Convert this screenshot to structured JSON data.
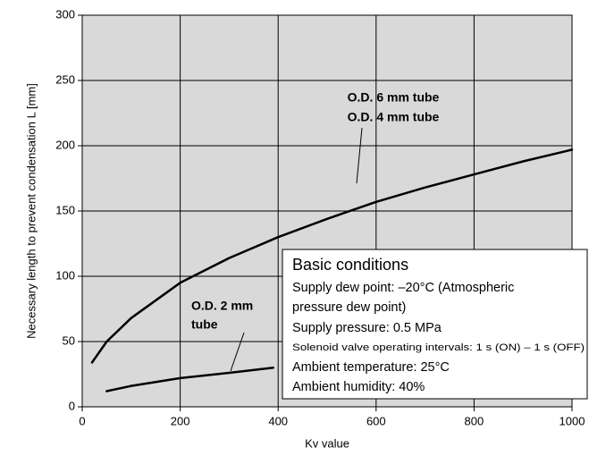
{
  "chart_data": {
    "type": "line",
    "xlabel": "Kv value",
    "ylabel": "Necessary length to prevent condensation L [mm]",
    "xlim": [
      0,
      1000
    ],
    "xticks": [
      0,
      200,
      400,
      600,
      800,
      1000
    ],
    "ylim": [
      0,
      300
    ],
    "yticks": [
      0,
      50,
      100,
      150,
      200,
      250,
      300
    ],
    "grid": true,
    "series": [
      {
        "color": "#000000",
        "x": [
          20,
          50,
          100,
          200,
          300,
          400,
          500,
          600,
          700,
          800,
          900,
          1000
        ],
        "values": [
          34,
          50,
          68,
          95,
          114,
          130,
          144,
          157,
          168,
          178,
          188,
          197
        ]
      },
      {
        "color": "#000000",
        "x": [
          50,
          100,
          200,
          300,
          390
        ],
        "values": [
          12,
          16,
          22,
          26,
          30
        ]
      }
    ],
    "annotations": {
      "od6": "O.D. 6 mm tube",
      "od4": "O.D. 4 mm tube",
      "od2_line1": "O.D. 2 mm",
      "od2_line2": "tube"
    },
    "conditions": {
      "title": "Basic conditions",
      "lines": [
        "Supply dew point: –20°C (Atmospheric",
        "pressure dew point)",
        "Supply pressure: 0.5 MPa",
        "Solenoid valve operating intervals: 1 s (ON) – 1 s (OFF)",
        "Ambient temperature: 25°C",
        "Ambient humidity: 40%"
      ]
    }
  }
}
